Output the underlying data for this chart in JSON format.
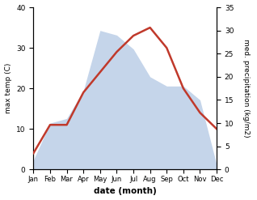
{
  "months": [
    "Jan",
    "Feb",
    "Mar",
    "Apr",
    "May",
    "Jun",
    "Jul",
    "Aug",
    "Sep",
    "Oct",
    "Nov",
    "Dec"
  ],
  "temp": [
    4,
    11,
    11,
    19,
    24,
    29,
    33,
    35,
    30,
    20,
    14,
    10
  ],
  "precip": [
    2,
    10,
    11,
    17,
    30,
    29,
    26,
    20,
    18,
    18,
    15,
    1
  ],
  "temp_color": "#c0392b",
  "precip_color": "#c5d5ea",
  "ylabel_left": "max temp (C)",
  "ylabel_right": "med. precipitation (kg/m2)",
  "xlabel": "date (month)",
  "ylim_left": [
    0,
    40
  ],
  "ylim_right": [
    0,
    35
  ],
  "yticks_left": [
    0,
    10,
    20,
    30,
    40
  ],
  "yticks_right": [
    0,
    5,
    10,
    15,
    20,
    25,
    30,
    35
  ],
  "line_width": 1.8,
  "bg_color": "#ffffff"
}
